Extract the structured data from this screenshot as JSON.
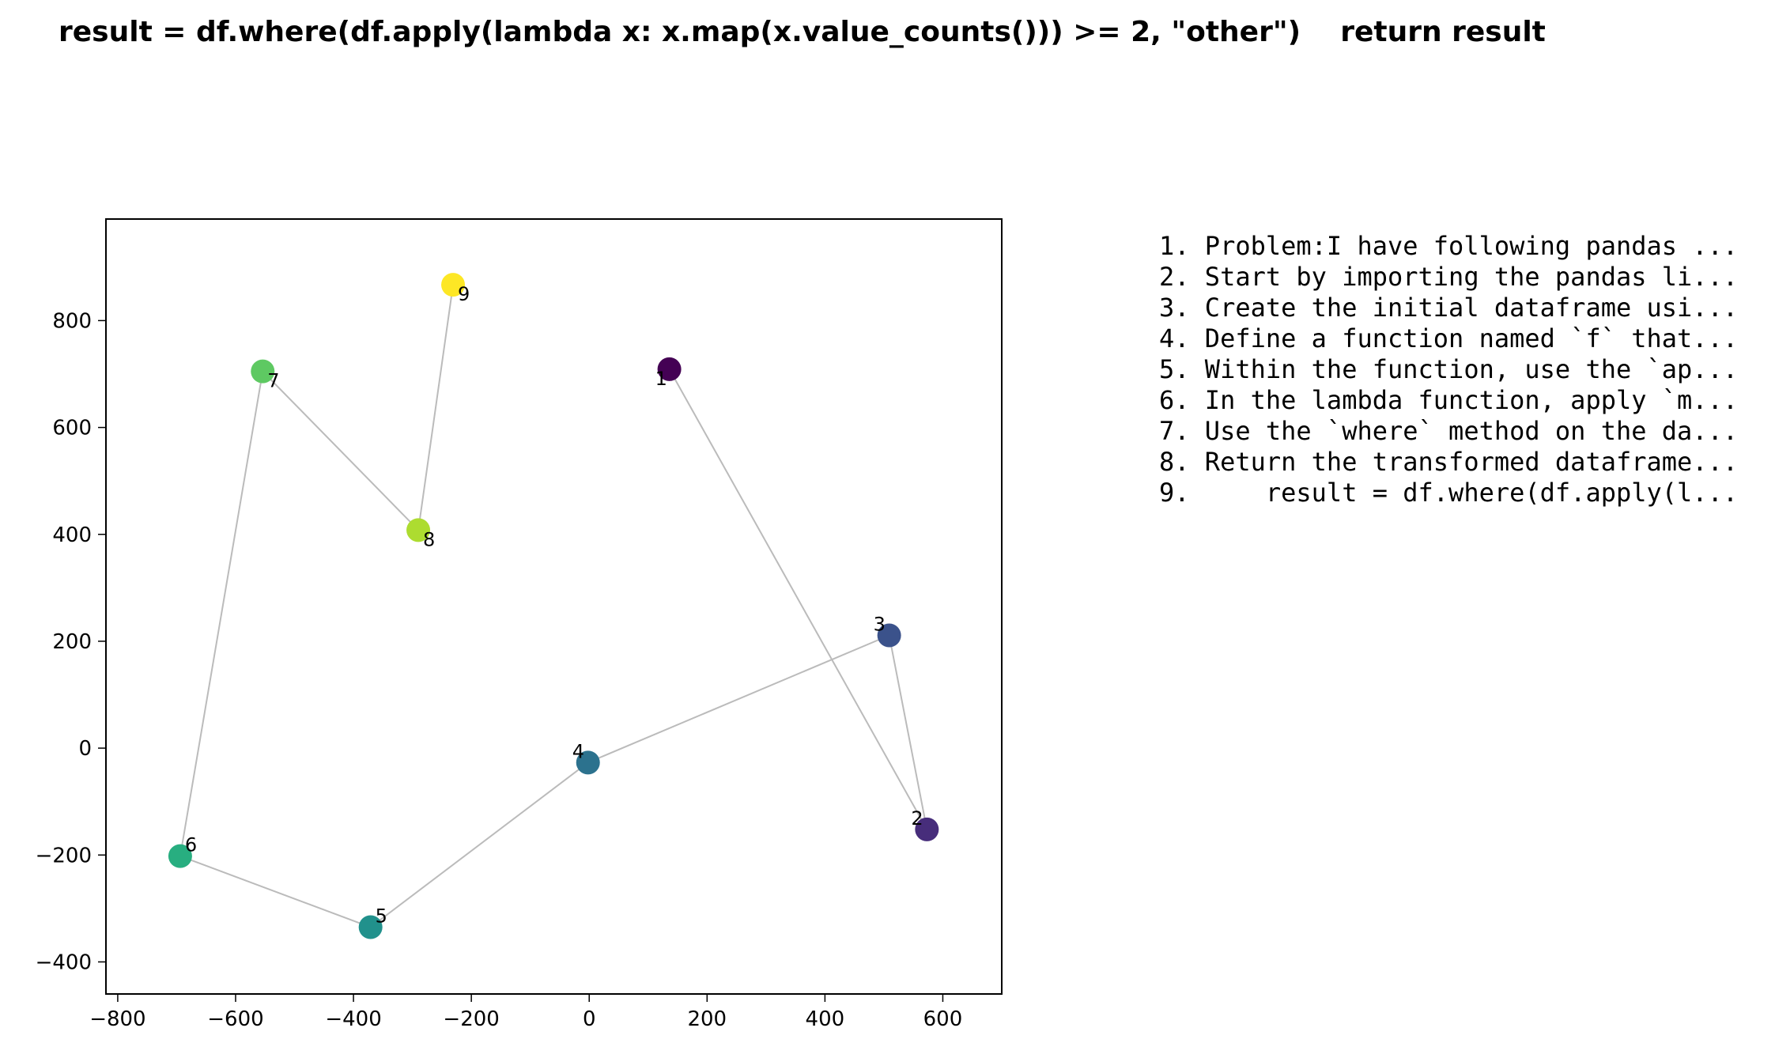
{
  "chart_data": {
    "type": "scatter",
    "title": "result = df.where(df.apply(lambda x: x.map(x.value_counts())) >= 2, \"other\")    return result",
    "xlabel": "",
    "ylabel": "",
    "xlim": [
      -820,
      700
    ],
    "ylim": [
      -460,
      990
    ],
    "x_ticks": [
      -800,
      -600,
      -400,
      -200,
      0,
      200,
      400,
      600
    ],
    "y_ticks": [
      -400,
      -200,
      0,
      200,
      400,
      600,
      800
    ],
    "grid": false,
    "connect_in_order": true,
    "colormap": "viridis",
    "line_color": "#bbbbbb",
    "points": [
      {
        "label": "1",
        "x": 136,
        "y": 709,
        "color": "#440154"
      },
      {
        "label": "2",
        "x": 573,
        "y": -152,
        "color": "#472d7b"
      },
      {
        "label": "3",
        "x": 509,
        "y": 211,
        "color": "#3b528b"
      },
      {
        "label": "4",
        "x": -2,
        "y": -27,
        "color": "#2c728e"
      },
      {
        "label": "5",
        "x": -371,
        "y": -335,
        "color": "#21918c"
      },
      {
        "label": "6",
        "x": -694,
        "y": -202,
        "color": "#28ae80"
      },
      {
        "label": "7",
        "x": -554,
        "y": 705,
        "color": "#5ec962"
      },
      {
        "label": "8",
        "x": -290,
        "y": 408,
        "color": "#addc30"
      },
      {
        "label": "9",
        "x": -231,
        "y": 867,
        "color": "#fde725"
      }
    ]
  },
  "steps": [
    "1. Problem:I have following pandas ...",
    "2. Start by importing the pandas li...",
    "3. Create the initial dataframe usi...",
    "4. Define a function named `f` that...",
    "5. Within the function, use the `ap...",
    "6. In the lambda function, apply `m...",
    "7. Use the `where` method on the da...",
    "8. Return the transformed dataframe...",
    "9.     result = df.where(df.apply(l..."
  ]
}
